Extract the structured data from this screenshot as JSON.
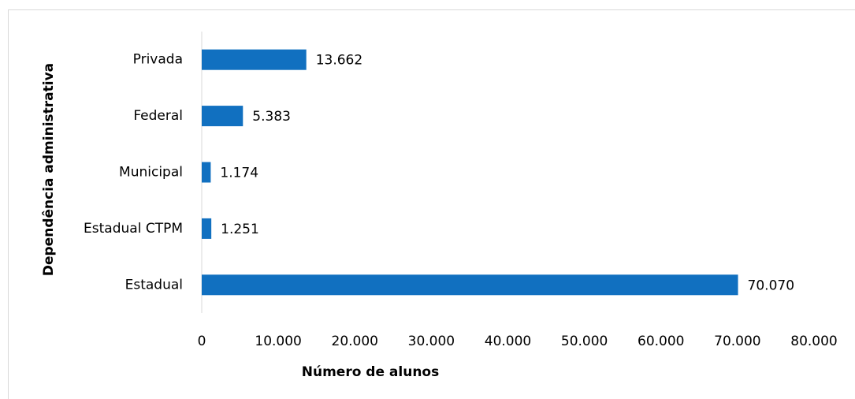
{
  "chart_data": {
    "type": "bar",
    "orientation": "horizontal",
    "categories": [
      "Privada",
      "Federal",
      "Municipal",
      "Estadual CTPM",
      "Estadual"
    ],
    "values": [
      13662,
      5383,
      1174,
      1251,
      70070
    ],
    "value_labels": [
      "13.662",
      "5.383",
      "1.174",
      "1.251",
      "70.070"
    ],
    "color": "#1170c0",
    "xlabel": "Número de alunos",
    "ylabel": "Dependência administrativa",
    "xlim": [
      0,
      80000
    ],
    "xticks": [
      0,
      {
        "value": 10000,
        "label": "10.000"
      },
      {
        "value": 20000,
        "label": "20.000"
      },
      {
        "value": 30000,
        "label": "30.000"
      },
      {
        "value": 40000,
        "label": "40.000"
      },
      {
        "value": 50000,
        "label": "50.000"
      },
      {
        "value": 60000,
        "label": "60.000"
      },
      {
        "value": 70000,
        "label": "70.000"
      },
      {
        "value": 80000,
        "label": "80.000"
      }
    ],
    "grid": false
  }
}
